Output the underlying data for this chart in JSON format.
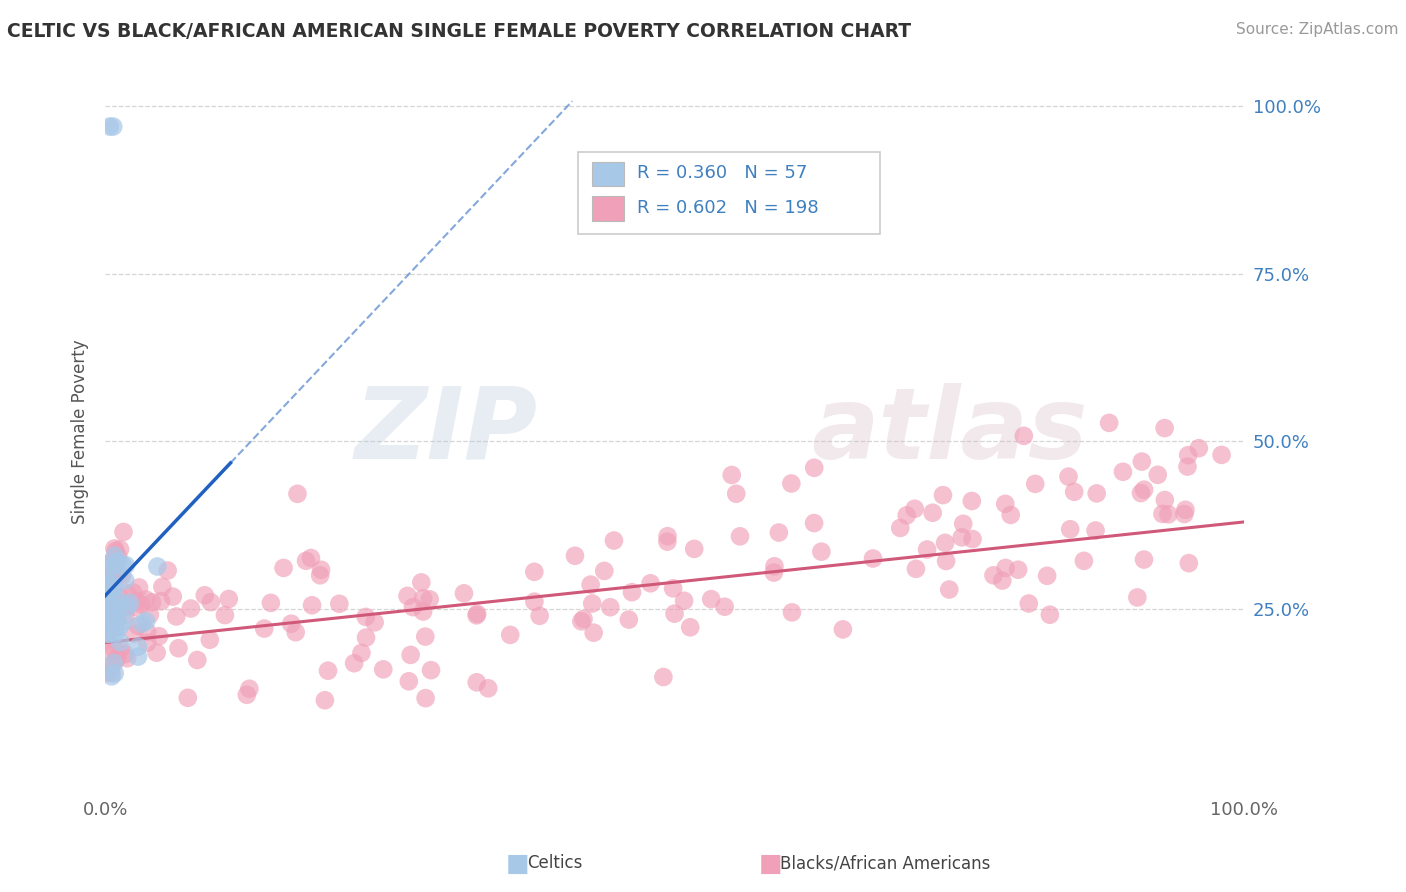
{
  "title": "CELTIC VS BLACK/AFRICAN AMERICAN SINGLE FEMALE POVERTY CORRELATION CHART",
  "source": "Source: ZipAtlas.com",
  "ylabel": "Single Female Poverty",
  "ytick_labels": [
    "25.0%",
    "50.0%",
    "75.0%",
    "100.0%"
  ],
  "ytick_positions": [
    0.25,
    0.5,
    0.75,
    1.0
  ],
  "blue_scatter_color": "#a8c8e8",
  "pink_scatter_color": "#f0a0b8",
  "blue_line_color": "#2060c0",
  "pink_line_color": "#d05878",
  "watermark_zip_color": "#b0c8e0",
  "watermark_atlas_color": "#d0b8c8",
  "background_color": "#ffffff",
  "grid_color": "#cccccc",
  "title_color": "#333333",
  "source_color": "#999999",
  "legend_text_color": "#4080c0",
  "R_blue": "0.360",
  "N_blue": "57",
  "R_pink": "0.602",
  "N_pink": "198",
  "xlim": [
    0.0,
    1.0
  ],
  "ylim": [
    -0.02,
    1.05
  ],
  "blue_trend_intercept": 0.27,
  "blue_trend_slope": 1.8,
  "pink_trend_intercept": 0.2,
  "pink_trend_slope": 0.18
}
